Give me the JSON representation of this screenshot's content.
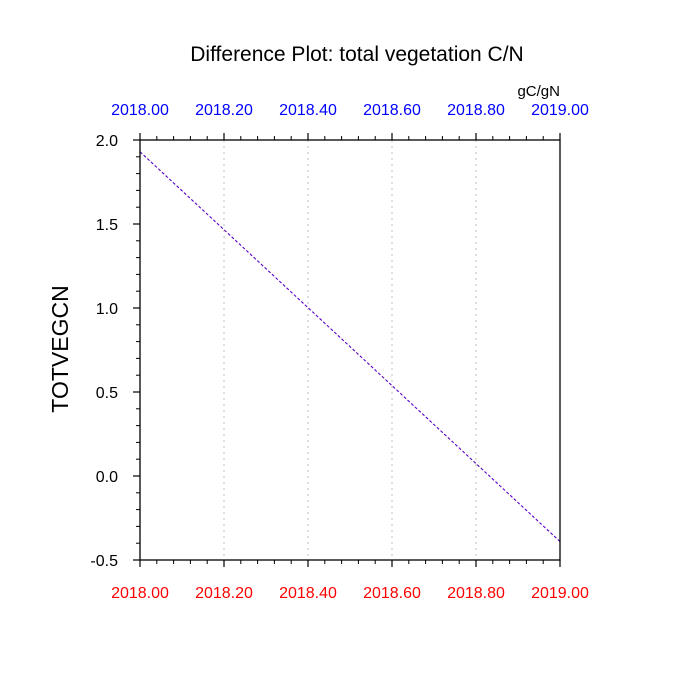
{
  "chart_data": {
    "type": "line",
    "title": "Difference Plot: total vegetation C/N",
    "units": "gC/gN",
    "ylabel": "TOTVEGCN",
    "xlabel": "",
    "xlim": [
      2018.0,
      2019.0
    ],
    "ylim": [
      -0.5,
      2.0
    ],
    "x_ticks": [
      "2018.00",
      "2018.20",
      "2018.40",
      "2018.60",
      "2018.80",
      "2019.00"
    ],
    "x_tick_values": [
      2018.0,
      2018.2,
      2018.4,
      2018.6,
      2018.8,
      2019.0
    ],
    "y_ticks": [
      "-0.5",
      "0.0",
      "0.5",
      "1.0",
      "1.5",
      "2.0"
    ],
    "y_tick_values": [
      -0.5,
      0.0,
      0.5,
      1.0,
      1.5,
      2.0
    ],
    "grid": "vertical-dotted",
    "top_axis_color": "#0000ff",
    "bottom_axis_color": "#ff0000",
    "series": [
      {
        "x": [
          2018.0,
          2019.0
        ],
        "y": [
          1.93,
          -0.39
        ],
        "color": "#5a00c8",
        "style": "dashed"
      }
    ]
  }
}
